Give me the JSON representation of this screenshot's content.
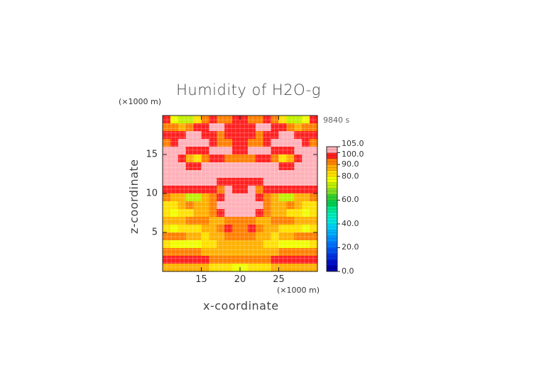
{
  "chart_data": {
    "type": "heatmap",
    "title": "Humidity of H2O-g",
    "xlabel": "x-coordinate",
    "ylabel": "z-coordinate",
    "x_unit": "(×1000 m)",
    "y_unit": "(×1000 m)",
    "time_label": "9840 s",
    "x_range": [
      10,
      30
    ],
    "y_range": [
      0,
      20
    ],
    "x_ticks": [
      "15",
      "20",
      "25"
    ],
    "x_tick_values": [
      15,
      20,
      25
    ],
    "y_ticks": [
      "5",
      "10",
      "15"
    ],
    "y_tick_values": [
      5,
      10,
      15
    ],
    "colorbar": {
      "min": 0,
      "max": 105,
      "tick_labels": [
        "0.0",
        "20.0",
        "40.0",
        "60.0",
        "80.0",
        "90.0",
        "100.0",
        "105.0"
      ],
      "tick_values": [
        0,
        20,
        40,
        60,
        80,
        90,
        100,
        105
      ],
      "bands": [
        {
          "from": 0,
          "to": 5,
          "color": "#0000aa"
        },
        {
          "from": 5,
          "to": 10,
          "color": "#0010c8"
        },
        {
          "from": 10,
          "to": 15,
          "color": "#0030e0"
        },
        {
          "from": 15,
          "to": 20,
          "color": "#0050f0"
        },
        {
          "from": 20,
          "to": 25,
          "color": "#0070ff"
        },
        {
          "from": 25,
          "to": 30,
          "color": "#0090ff"
        },
        {
          "from": 30,
          "to": 35,
          "color": "#00b0ff"
        },
        {
          "from": 35,
          "to": 40,
          "color": "#00d0f8"
        },
        {
          "from": 40,
          "to": 45,
          "color": "#00e8e0"
        },
        {
          "from": 45,
          "to": 50,
          "color": "#00f0c0"
        },
        {
          "from": 50,
          "to": 55,
          "color": "#00e890"
        },
        {
          "from": 55,
          "to": 60,
          "color": "#00d050"
        },
        {
          "from": 60,
          "to": 65,
          "color": "#30d030"
        },
        {
          "from": 65,
          "to": 70,
          "color": "#80e020"
        },
        {
          "from": 70,
          "to": 75,
          "color": "#c0f000"
        },
        {
          "from": 75,
          "to": 80,
          "color": "#f0ff00"
        },
        {
          "from": 80,
          "to": 85,
          "color": "#ffe000"
        },
        {
          "from": 85,
          "to": 90,
          "color": "#ffb000"
        },
        {
          "from": 90,
          "to": 95,
          "color": "#ff8000"
        },
        {
          "from": 95,
          "to": 100,
          "color": "#ff2020"
        },
        {
          "from": 100,
          "to": 105,
          "color": "#ffb0b8"
        }
      ]
    },
    "z_grid": {
      "x": [
        10.5,
        11.5,
        12.5,
        13.5,
        14.5,
        15.5,
        16.5,
        17.5,
        18.5,
        19.5,
        20.5,
        21.5,
        22.5,
        23.5,
        24.5,
        25.5,
        26.5,
        27.5,
        28.5,
        29.5
      ],
      "y": [
        19.5,
        18.5,
        17.5,
        16.5,
        15.5,
        14.5,
        13.5,
        12.5,
        11.5,
        10.5,
        9.5,
        8.5,
        7.5,
        6.5,
        5.5,
        4.5,
        3.5,
        2.5,
        1.5,
        0.5
      ],
      "values": [
        [
          96,
          78,
          72,
          74,
          82,
          92,
          96,
          90,
          92,
          97,
          97,
          92,
          90,
          96,
          92,
          82,
          74,
          72,
          78,
          96
        ],
        [
          94,
          90,
          88,
          92,
          96,
          98,
          101,
          101,
          98,
          96,
          96,
          98,
          101,
          101,
          98,
          96,
          92,
          88,
          90,
          94
        ],
        [
          97,
          98,
          99,
          101,
          101,
          99,
          96,
          94,
          96,
          98,
          98,
          96,
          94,
          96,
          99,
          101,
          101,
          99,
          98,
          97
        ],
        [
          94,
          96,
          101,
          103,
          103,
          101,
          97,
          93,
          93,
          97,
          97,
          93,
          93,
          97,
          101,
          103,
          103,
          101,
          96,
          94
        ],
        [
          101,
          102,
          101,
          99,
          97,
          98,
          101,
          102,
          101,
          99,
          99,
          101,
          102,
          101,
          98,
          97,
          99,
          101,
          102,
          101
        ],
        [
          101,
          101,
          97,
          85,
          84,
          91,
          98,
          96,
          93,
          92,
          92,
          93,
          96,
          98,
          91,
          84,
          85,
          97,
          101,
          101
        ],
        [
          102,
          102,
          101,
          97,
          96,
          100,
          102,
          102,
          101,
          101,
          101,
          101,
          102,
          102,
          100,
          96,
          97,
          101,
          102,
          102
        ],
        [
          103,
          103,
          103,
          102,
          102,
          103,
          103,
          103,
          103,
          103,
          103,
          103,
          103,
          103,
          103,
          102,
          102,
          103,
          103,
          103
        ],
        [
          101,
          101,
          101,
          102,
          103,
          103,
          102,
          98,
          96,
          97,
          97,
          96,
          98,
          102,
          103,
          103,
          102,
          101,
          101,
          101
        ],
        [
          97,
          97,
          97,
          96,
          96,
          97,
          96,
          92,
          101,
          95,
          95,
          101,
          92,
          96,
          97,
          96,
          96,
          97,
          97,
          97
        ],
        [
          91,
          89,
          87,
          73,
          73,
          86,
          92,
          96,
          103,
          103,
          103,
          103,
          96,
          92,
          86,
          73,
          73,
          87,
          89,
          91
        ],
        [
          84,
          83,
          86,
          90,
          88,
          87,
          92,
          101,
          103,
          103,
          103,
          103,
          101,
          92,
          87,
          88,
          90,
          86,
          83,
          84
        ],
        [
          80,
          79,
          80,
          83,
          86,
          88,
          90,
          95,
          101,
          103,
          103,
          101,
          95,
          90,
          88,
          86,
          83,
          80,
          79,
          80
        ],
        [
          86,
          87,
          89,
          91,
          92,
          90,
          88,
          87,
          90,
          94,
          94,
          90,
          87,
          88,
          90,
          92,
          91,
          89,
          87,
          86
        ],
        [
          80,
          79,
          82,
          83,
          83,
          86,
          89,
          92,
          95,
          94,
          94,
          95,
          92,
          89,
          86,
          83,
          83,
          82,
          79,
          80
        ],
        [
          90,
          91,
          91,
          88,
          85,
          84,
          85,
          88,
          92,
          93,
          93,
          92,
          88,
          85,
          84,
          85,
          88,
          91,
          91,
          90
        ],
        [
          80,
          78,
          78,
          78,
          79,
          81,
          83,
          85,
          87,
          88,
          88,
          87,
          85,
          83,
          81,
          79,
          78,
          78,
          78,
          80
        ],
        [
          92,
          93,
          93,
          92,
          90,
          88,
          86,
          86,
          87,
          87,
          87,
          87,
          86,
          86,
          88,
          90,
          92,
          93,
          93,
          92
        ],
        [
          96,
          97,
          97,
          97,
          96,
          95,
          93,
          92,
          91,
          90,
          90,
          91,
          92,
          93,
          95,
          96,
          97,
          97,
          97,
          96
        ],
        [
          88,
          88,
          88,
          87,
          86,
          85,
          84,
          82,
          80,
          78,
          78,
          80,
          82,
          84,
          85,
          86,
          87,
          88,
          88,
          88
        ]
      ]
    }
  }
}
